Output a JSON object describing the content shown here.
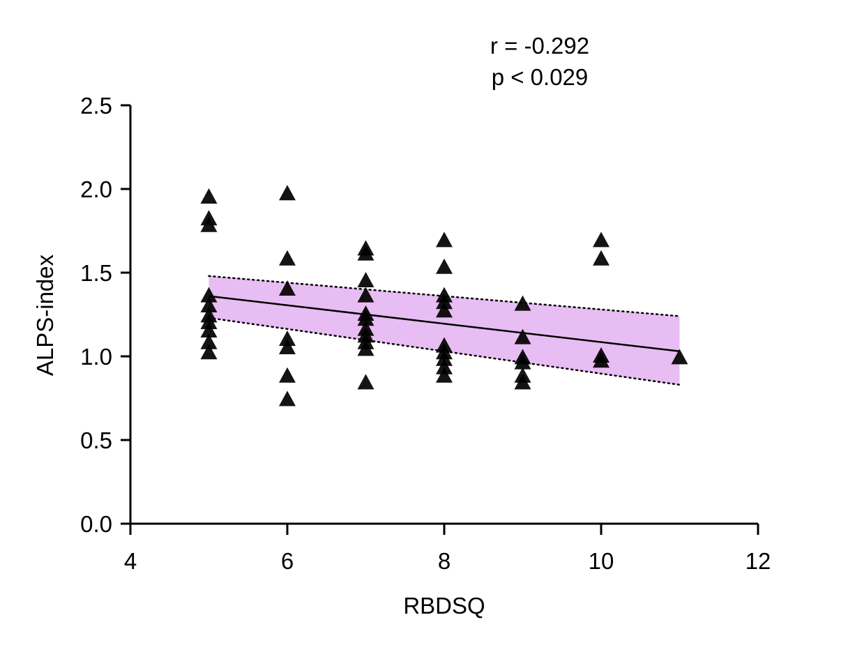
{
  "chart_data": {
    "type": "scatter",
    "title": "",
    "xlabel": "RBDSQ",
    "ylabel": "ALPS-index",
    "xlim": [
      4,
      12
    ],
    "ylim": [
      0,
      2.5
    ],
    "xticks": [
      4,
      6,
      8,
      10,
      12
    ],
    "yticks": [
      0.0,
      0.5,
      1.0,
      1.5,
      2.0,
      2.5
    ],
    "xtick_labels": [
      "4",
      "6",
      "8",
      "10",
      "12"
    ],
    "ytick_labels": [
      "0.0",
      "0.5",
      "1.0",
      "1.5",
      "2.0",
      "2.5"
    ],
    "grid": false,
    "legend": "none",
    "marker": "triangle",
    "marker_color": "#000000",
    "annotations": {
      "r_text": "r = -0.292",
      "p_text": "p <  0.029"
    },
    "points": [
      [
        5,
        1.95
      ],
      [
        5,
        1.82
      ],
      [
        5,
        1.78
      ],
      [
        5,
        1.36
      ],
      [
        5,
        1.3
      ],
      [
        5,
        1.24
      ],
      [
        5,
        1.2
      ],
      [
        5,
        1.15
      ],
      [
        5,
        1.08
      ],
      [
        5,
        1.02
      ],
      [
        6,
        1.97
      ],
      [
        6,
        1.58
      ],
      [
        6,
        1.4
      ],
      [
        6,
        1.1
      ],
      [
        6,
        1.05
      ],
      [
        6,
        0.88
      ],
      [
        6,
        0.74
      ],
      [
        7,
        1.64
      ],
      [
        7,
        1.61
      ],
      [
        7,
        1.45
      ],
      [
        7,
        1.36
      ],
      [
        7,
        1.25
      ],
      [
        7,
        1.22
      ],
      [
        7,
        1.16
      ],
      [
        7,
        1.12
      ],
      [
        7,
        1.08
      ],
      [
        7,
        1.04
      ],
      [
        7,
        0.84
      ],
      [
        8,
        1.69
      ],
      [
        8,
        1.53
      ],
      [
        8,
        1.36
      ],
      [
        8,
        1.32
      ],
      [
        8,
        1.27
      ],
      [
        8,
        1.06
      ],
      [
        8,
        1.02
      ],
      [
        8,
        0.98
      ],
      [
        8,
        0.93
      ],
      [
        8,
        0.88
      ],
      [
        9,
        1.31
      ],
      [
        9,
        1.11
      ],
      [
        9,
        0.99
      ],
      [
        9,
        0.96
      ],
      [
        9,
        0.88
      ],
      [
        9,
        0.84
      ],
      [
        10,
        1.69
      ],
      [
        10,
        1.58
      ],
      [
        10,
        1.0
      ],
      [
        10,
        0.97
      ],
      [
        11,
        0.99
      ]
    ],
    "regression": {
      "x_range": [
        5,
        11
      ],
      "y_start": 1.36,
      "y_end": 1.03
    },
    "confidence_band": {
      "color": "#e8bdf3",
      "x": [
        5,
        11
      ],
      "upper": [
        1.48,
        1.24
      ],
      "lower": [
        1.23,
        0.83
      ]
    }
  }
}
